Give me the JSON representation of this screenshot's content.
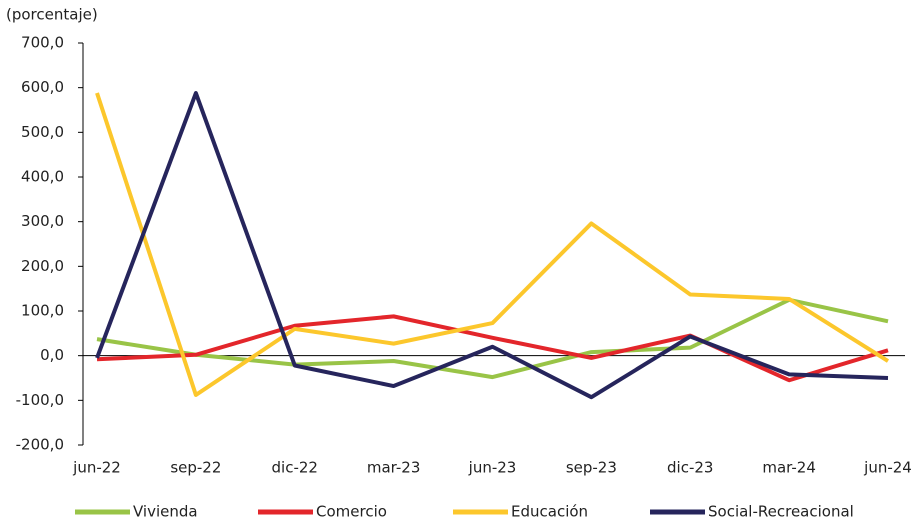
{
  "chart_data": {
    "type": "line",
    "y_label": "(porcentaje)",
    "categories": [
      "jun-22",
      "sep-22",
      "dic-22",
      "mar-23",
      "jun-23",
      "sep-23",
      "dic-23",
      "mar-24",
      "jun-24"
    ],
    "series": [
      {
        "name": "Vivienda",
        "color": "#99c447",
        "values": [
          37,
          2,
          -20,
          -12,
          -48,
          8,
          18,
          125,
          77
        ]
      },
      {
        "name": "Comercio",
        "color": "#e3262b",
        "values": [
          -8,
          2,
          67,
          88,
          40,
          -5,
          45,
          -55,
          12
        ]
      },
      {
        "name": "Educación",
        "color": "#fcc72c",
        "values": [
          588,
          -88,
          60,
          27,
          73,
          296,
          137,
          127,
          -12
        ]
      },
      {
        "name": "Social-Recreacional",
        "color": "#26255c",
        "values": [
          -5,
          588,
          -22,
          -68,
          20,
          -93,
          43,
          -42,
          -50
        ]
      }
    ],
    "ylim": [
      -200,
      700
    ],
    "yticks": [
      {
        "value": -200,
        "label": "-200,0"
      },
      {
        "value": -100,
        "label": "-100,0"
      },
      {
        "value": 0,
        "label": "0,0"
      },
      {
        "value": 100,
        "label": "100,0"
      },
      {
        "value": 200,
        "label": "200,0"
      },
      {
        "value": 300,
        "label": "300,0"
      },
      {
        "value": 400,
        "label": "400,0"
      },
      {
        "value": 500,
        "label": "500,0"
      },
      {
        "value": 600,
        "label": "600,0"
      },
      {
        "value": 700,
        "label": "700,0"
      }
    ],
    "legend": "bottom"
  }
}
